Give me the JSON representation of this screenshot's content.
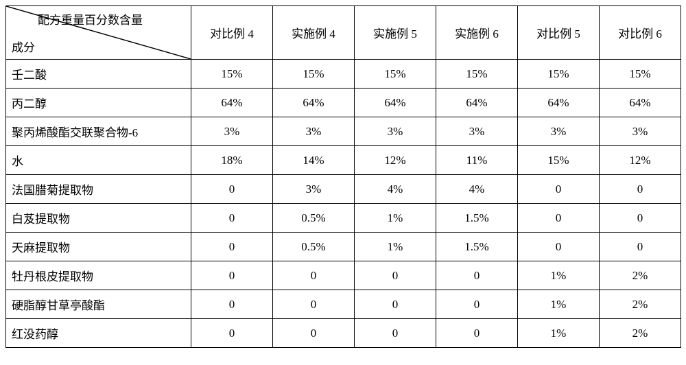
{
  "table": {
    "corner": {
      "top_label": "配方重量百分数含量",
      "bottom_label": "成分"
    },
    "columns": [
      "对比例 4",
      "实施例 4",
      "实施例 5",
      "实施例 6",
      "对比例 5",
      "对比例 6"
    ],
    "rows": [
      {
        "name": "壬二酸",
        "values": [
          "15%",
          "15%",
          "15%",
          "15%",
          "15%",
          "15%"
        ]
      },
      {
        "name": "丙二醇",
        "values": [
          "64%",
          "64%",
          "64%",
          "64%",
          "64%",
          "64%"
        ]
      },
      {
        "name": "聚丙烯酸酯交联聚合物-6",
        "values": [
          "3%",
          "3%",
          "3%",
          "3%",
          "3%",
          "3%"
        ]
      },
      {
        "name": "水",
        "values": [
          "18%",
          "14%",
          "12%",
          "11%",
          "15%",
          "12%"
        ]
      },
      {
        "name": "法国腊菊提取物",
        "values": [
          "0",
          "3%",
          "4%",
          "4%",
          "0",
          "0"
        ]
      },
      {
        "name": "白芨提取物",
        "values": [
          "0",
          "0.5%",
          "1%",
          "1.5%",
          "0",
          "0"
        ]
      },
      {
        "name": "天麻提取物",
        "values": [
          "0",
          "0.5%",
          "1%",
          "1.5%",
          "0",
          "0"
        ]
      },
      {
        "name": "牡丹根皮提取物",
        "values": [
          "0",
          "0",
          "0",
          "0",
          "1%",
          "2%"
        ]
      },
      {
        "name": "硬脂醇甘草亭酸酯",
        "values": [
          "0",
          "0",
          "0",
          "0",
          "1%",
          "2%"
        ]
      },
      {
        "name": "红没药醇",
        "values": [
          "0",
          "0",
          "0",
          "0",
          "1%",
          "2%"
        ]
      }
    ],
    "style": {
      "border_color": "#000000",
      "border_width": 1.5,
      "background_color": "#ffffff",
      "text_color": "#000000",
      "font_size": 17,
      "header_row_height": 78,
      "data_row_height": 42,
      "first_col_width": 270,
      "data_col_width": 119,
      "total_width": 984,
      "total_height": 516
    }
  }
}
